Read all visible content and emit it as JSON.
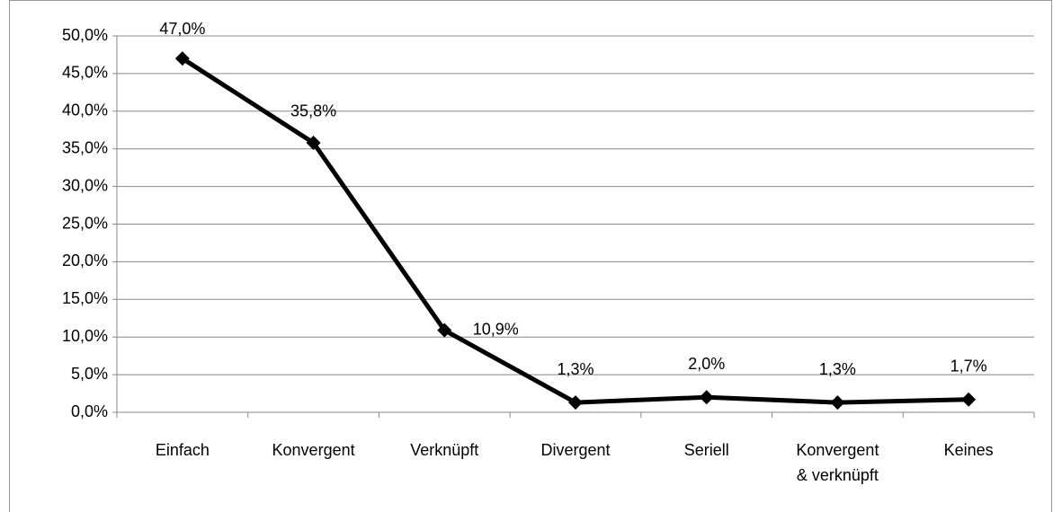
{
  "chart_data": {
    "type": "line",
    "categories": [
      "Einfach",
      "Konvergent",
      "Verknüpft",
      "Divergent",
      "Seriell",
      "Konvergent & verknüpft",
      "Keines"
    ],
    "series": [
      {
        "color": "#000000",
        "values": [
          47.0,
          35.8,
          10.9,
          1.3,
          2.0,
          1.3,
          1.7
        ],
        "value_labels": [
          "47,0%",
          "35,8%",
          "10,9%",
          "1,3%",
          "2,0%",
          "1,3%",
          "1,7%"
        ]
      }
    ],
    "ylim": [
      0,
      50
    ],
    "yticks": [
      {
        "value": 0,
        "label": "0,0%"
      },
      {
        "value": 5,
        "label": "5,0%"
      },
      {
        "value": 10,
        "label": "10,0%"
      },
      {
        "value": 15,
        "label": "15,0%"
      },
      {
        "value": 20,
        "label": "20,0%"
      },
      {
        "value": 25,
        "label": "25,0%"
      },
      {
        "value": 30,
        "label": "30,0%"
      },
      {
        "value": 35,
        "label": "35,0%"
      },
      {
        "value": 40,
        "label": "40,0%"
      },
      {
        "value": 45,
        "label": "45,0%"
      },
      {
        "value": 50,
        "label": "50,0%"
      }
    ],
    "grid": true
  }
}
